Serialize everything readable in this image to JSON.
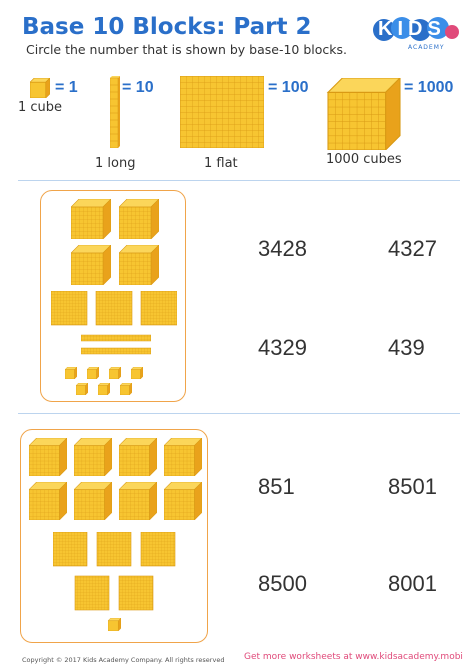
{
  "header": {
    "title": "Base 10 Blocks: Part 2",
    "subtitle": "Circle the number that is shown by base-10 blocks.",
    "logo_text": "KIDS",
    "logo_sub": "ACADEMY"
  },
  "legend": [
    {
      "equals": "= 1",
      "caption": "1 cube"
    },
    {
      "equals": "= 10",
      "caption": "1 long"
    },
    {
      "equals": "= 100",
      "caption": "1 flat"
    },
    {
      "equals": "= 1000",
      "caption": "1000 cubes"
    }
  ],
  "problems": [
    {
      "blocks": {
        "thousands": 4,
        "hundreds": 3,
        "tens": 2,
        "ones": 7
      },
      "options": [
        "3428",
        "4327",
        "4329",
        "439"
      ]
    },
    {
      "blocks": {
        "thousands": 8,
        "hundreds": 5,
        "tens": 0,
        "ones": 1
      },
      "options": [
        "851",
        "8501",
        "8500",
        "8001"
      ]
    }
  ],
  "footer": {
    "copyright": "Copyright © 2017 Kids Academy Company. All rights reserved",
    "link": "Get more worksheets at www.kidsacademy.mobi"
  },
  "colors": {
    "title_blue": "#2a6fc9",
    "block_yellow": "#f7c531",
    "block_orange": "#e9a21b",
    "panel_border": "#f0a44a",
    "link_pink": "#e04a7a"
  }
}
